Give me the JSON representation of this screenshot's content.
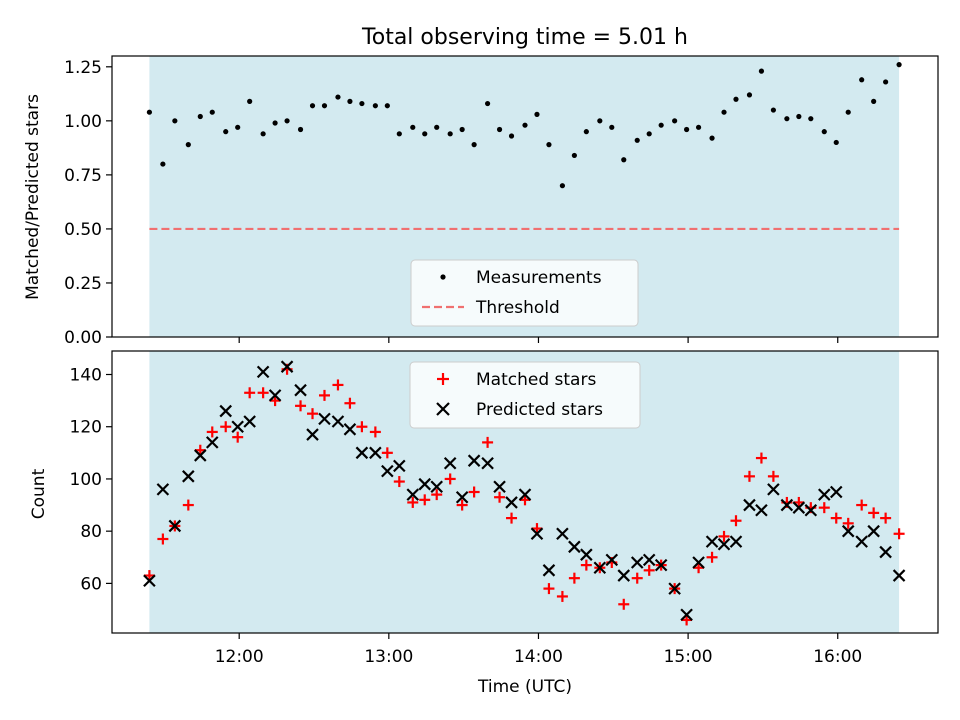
{
  "title": "Total observing time = 5.01 h",
  "colors": {
    "observing_window": "#d3eaf0",
    "measurement": "#000000",
    "threshold": "#f07070",
    "matched": "#ff0000",
    "predicted": "#000000"
  },
  "chart_data": [
    {
      "type": "scatter",
      "ylabel": "Matched/Predicted stars",
      "ylim": [
        0,
        1.3
      ],
      "yticks": [
        0.0,
        0.25,
        0.5,
        0.75,
        1.0,
        1.25
      ],
      "ytick_labels": [
        "0.00",
        "0.25",
        "0.50",
        "0.75",
        "1.00",
        "1.25"
      ],
      "x_unit": "hours UTC",
      "xlim": [
        11.15,
        16.67
      ],
      "observing_window": [
        11.4,
        16.41
      ],
      "threshold": 0.5,
      "legend": {
        "placement": "lower-center",
        "entries": [
          "Measurements",
          "Threshold"
        ]
      },
      "series": [
        {
          "name": "Measurements",
          "x": [
            11.4,
            11.49,
            11.57,
            11.66,
            11.74,
            11.82,
            11.91,
            11.99,
            12.07,
            12.16,
            12.24,
            12.32,
            12.41,
            12.49,
            12.57,
            12.66,
            12.74,
            12.82,
            12.91,
            12.99,
            13.07,
            13.16,
            13.24,
            13.32,
            13.41,
            13.49,
            13.57,
            13.66,
            13.74,
            13.82,
            13.91,
            13.99,
            14.07,
            14.16,
            14.24,
            14.32,
            14.41,
            14.49,
            14.57,
            14.66,
            14.74,
            14.82,
            14.91,
            14.99,
            15.07,
            15.16,
            15.24,
            15.32,
            15.41,
            15.49,
            15.57,
            15.66,
            15.74,
            15.82,
            15.91,
            15.99,
            16.07,
            16.16,
            16.24,
            16.32,
            16.41
          ],
          "y": [
            1.04,
            0.8,
            1.0,
            0.89,
            1.02,
            1.04,
            0.95,
            0.97,
            1.09,
            0.94,
            0.99,
            1.0,
            0.96,
            1.07,
            1.07,
            1.11,
            1.09,
            1.08,
            1.07,
            1.07,
            0.94,
            0.97,
            0.94,
            0.97,
            0.94,
            0.96,
            0.89,
            1.08,
            0.96,
            0.93,
            0.98,
            1.03,
            0.89,
            0.7,
            0.84,
            0.95,
            1.0,
            0.97,
            0.82,
            0.91,
            0.94,
            0.98,
            1.0,
            0.96,
            0.97,
            0.92,
            1.04,
            1.1,
            1.12,
            1.23,
            1.05,
            1.01,
            1.02,
            1.01,
            0.95,
            0.9,
            1.04,
            1.19,
            1.09,
            1.18,
            1.26
          ]
        }
      ]
    },
    {
      "type": "scatter",
      "xlabel": "Time (UTC)",
      "ylabel": "Count",
      "ylim": [
        41,
        149
      ],
      "yticks": [
        60,
        80,
        100,
        120,
        140
      ],
      "ytick_labels": [
        "60",
        "80",
        "100",
        "120",
        "140"
      ],
      "x_unit": "hours UTC",
      "xlim": [
        11.15,
        16.67
      ],
      "xticks": [
        12,
        13,
        14,
        15,
        16
      ],
      "xtick_labels": [
        "12:00",
        "13:00",
        "14:00",
        "15:00",
        "16:00"
      ],
      "observing_window": [
        11.4,
        16.41
      ],
      "legend": {
        "placement": "upper-center",
        "entries": [
          "Matched stars",
          "Predicted stars"
        ]
      },
      "series": [
        {
          "name": "Matched stars",
          "marker": "plus",
          "x": [
            11.4,
            11.49,
            11.57,
            11.66,
            11.74,
            11.82,
            11.91,
            11.99,
            12.07,
            12.16,
            12.24,
            12.32,
            12.41,
            12.49,
            12.57,
            12.66,
            12.74,
            12.82,
            12.91,
            12.99,
            13.07,
            13.16,
            13.24,
            13.32,
            13.41,
            13.49,
            13.57,
            13.66,
            13.74,
            13.82,
            13.91,
            13.99,
            14.07,
            14.16,
            14.24,
            14.32,
            14.41,
            14.49,
            14.57,
            14.66,
            14.74,
            14.82,
            14.91,
            14.99,
            15.07,
            15.16,
            15.24,
            15.32,
            15.41,
            15.49,
            15.57,
            15.66,
            15.74,
            15.82,
            15.91,
            15.99,
            16.07,
            16.16,
            16.24,
            16.32,
            16.41
          ],
          "y": [
            63,
            77,
            82,
            90,
            111,
            118,
            120,
            116,
            133,
            133,
            130,
            142,
            128,
            125,
            132,
            136,
            129,
            120,
            118,
            110,
            99,
            91,
            92,
            94,
            100,
            90,
            95,
            114,
            93,
            85,
            92,
            81,
            58,
            55,
            62,
            67,
            66,
            68,
            52,
            62,
            65,
            67,
            58,
            46,
            66,
            70,
            78,
            84,
            101,
            108,
            101,
            91,
            91,
            89,
            89,
            85,
            83,
            90,
            87,
            85,
            79
          ]
        },
        {
          "name": "Predicted stars",
          "marker": "cross",
          "x": [
            11.4,
            11.49,
            11.57,
            11.66,
            11.74,
            11.82,
            11.91,
            11.99,
            12.07,
            12.16,
            12.24,
            12.32,
            12.41,
            12.49,
            12.57,
            12.66,
            12.74,
            12.82,
            12.91,
            12.99,
            13.07,
            13.16,
            13.24,
            13.32,
            13.41,
            13.49,
            13.57,
            13.66,
            13.74,
            13.82,
            13.91,
            13.99,
            14.07,
            14.16,
            14.24,
            14.32,
            14.41,
            14.49,
            14.57,
            14.66,
            14.74,
            14.82,
            14.91,
            14.99,
            15.07,
            15.16,
            15.24,
            15.32,
            15.41,
            15.49,
            15.57,
            15.66,
            15.74,
            15.82,
            15.91,
            15.99,
            16.07,
            16.16,
            16.24,
            16.32,
            16.41
          ],
          "y": [
            61,
            96,
            82,
            101,
            109,
            114,
            126,
            120,
            122,
            141,
            132,
            143,
            134,
            117,
            123,
            122,
            119,
            110,
            110,
            103,
            105,
            94,
            98,
            97,
            106,
            93,
            107,
            106,
            97,
            91,
            94,
            79,
            65,
            79,
            74,
            71,
            66,
            69,
            63,
            68,
            69,
            67,
            58,
            48,
            68,
            76,
            75,
            76,
            90,
            88,
            96,
            90,
            89,
            88,
            94,
            95,
            80,
            76,
            80,
            72,
            63
          ]
        }
      ]
    }
  ]
}
